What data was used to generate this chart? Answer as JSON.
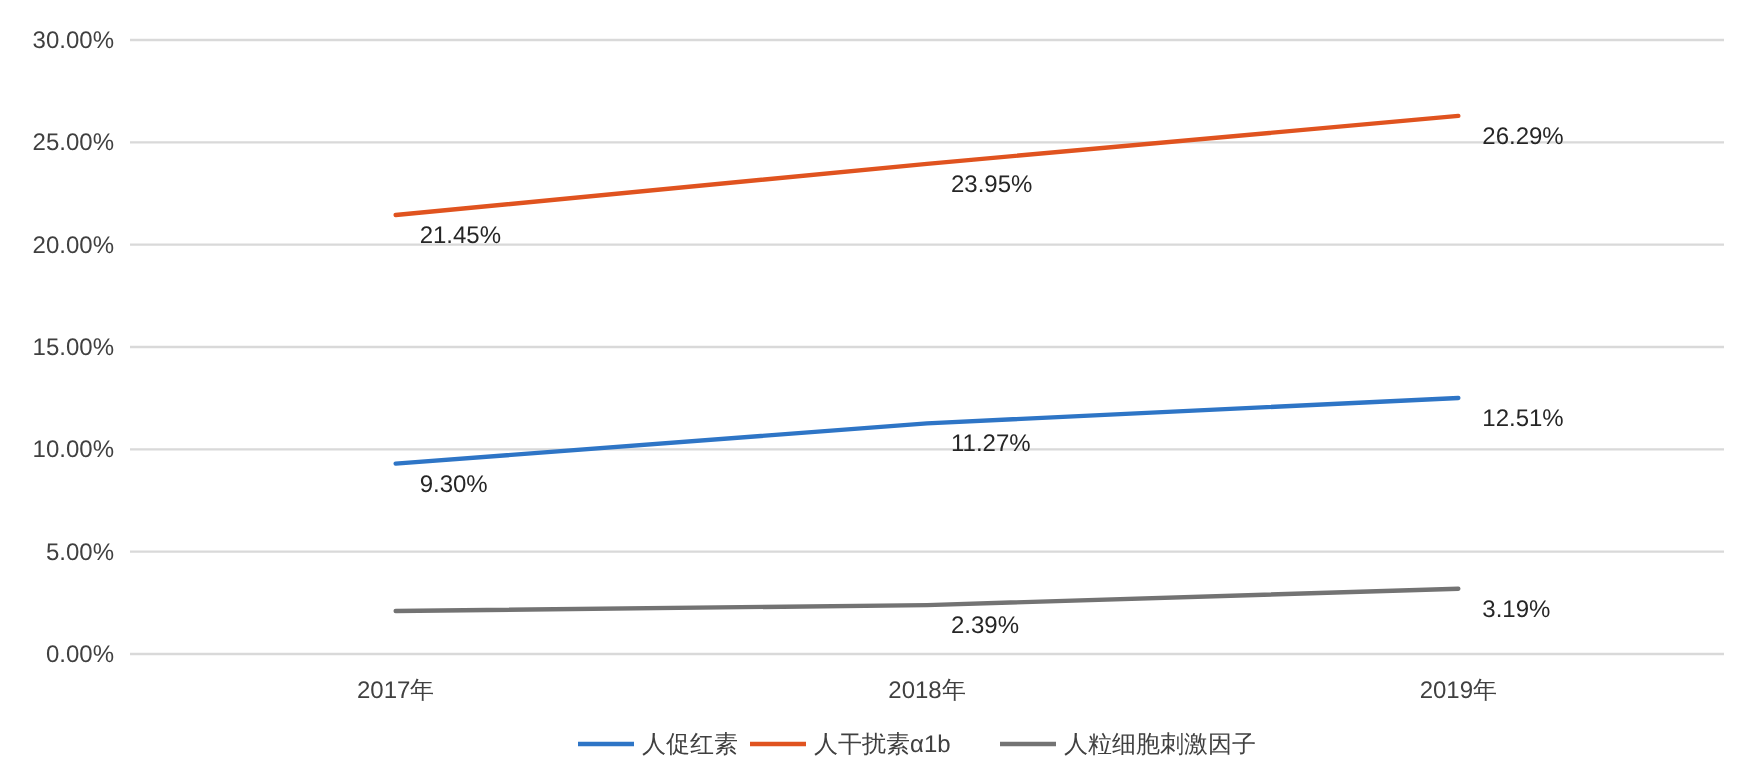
{
  "chart_data": {
    "type": "line",
    "categories": [
      "2017年",
      "2018年",
      "2019年"
    ],
    "series": [
      {
        "name": "人促红素",
        "color": "#2e75c6",
        "values": [
          9.3,
          11.27,
          12.51
        ],
        "value_labels": [
          "9.30%",
          "11.27%",
          "12.51%"
        ]
      },
      {
        "name": "人干扰素α1b",
        "color": "#e0531f",
        "values": [
          21.45,
          23.95,
          26.29
        ],
        "value_labels": [
          "21.45%",
          "23.95%",
          "26.29%"
        ]
      },
      {
        "name": "人粒细胞刺激因子",
        "color": "#737373",
        "values": [
          2.1,
          2.39,
          3.19
        ],
        "value_labels": [
          null,
          "2.39%",
          "3.19%"
        ]
      }
    ],
    "ylim": [
      0,
      30
    ],
    "yticks": [
      {
        "value": 0,
        "label": "0.00%"
      },
      {
        "value": 5,
        "label": "5.00%"
      },
      {
        "value": 10,
        "label": "10.00%"
      },
      {
        "value": 15,
        "label": "15.00%"
      },
      {
        "value": 20,
        "label": "20.00%"
      },
      {
        "value": 25,
        "label": "25.00%"
      },
      {
        "value": 30,
        "label": "30.00%"
      }
    ],
    "grid": "y",
    "legend": "bottom",
    "marker": "none",
    "line_style": "solid"
  }
}
